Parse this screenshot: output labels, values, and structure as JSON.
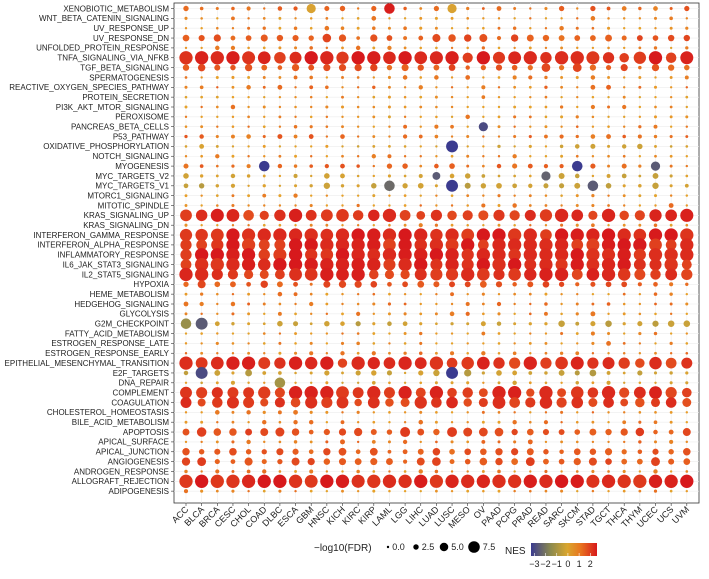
{
  "chart_data": {
    "type": "bubble-heatmap",
    "title": "",
    "xlabel": "",
    "ylabel": "",
    "cancers": [
      "ACC",
      "BLCA",
      "BRCA",
      "CESC",
      "CHOL",
      "COAD",
      "DLBC",
      "ESCA",
      "GBM",
      "HNSC",
      "KICH",
      "KIRC",
      "KIRP",
      "LAML",
      "LGG",
      "LIHC",
      "LUAD",
      "LUSC",
      "MESO",
      "OV",
      "PAAD",
      "PCPG",
      "PRAD",
      "READ",
      "SARC",
      "SKCM",
      "STAD",
      "TGCT",
      "THCA",
      "THYM",
      "UCEC",
      "UCS",
      "UVM"
    ],
    "pathways": [
      "XENOBIOTIC_METABOLISM",
      "WNT_BETA_CATENIN_SIGNALING",
      "UV_RESPONSE_UP",
      "UV_RESPONSE_DN",
      "UNFOLDED_PROTEIN_RESPONSE",
      "TNFA_SIGNALING_VIA_NFKB",
      "TGF_BETA_SIGNALING",
      "SPERMATOGENESIS",
      "REACTIVE_OXYGEN_SPECIES_PATHWAY",
      "PROTEIN_SECRETION",
      "PI3K_AKT_MTOR_SIGNALING",
      "PEROXISOME",
      "PANCREAS_BETA_CELLS",
      "P53_PATHWAY",
      "OXIDATIVE_PHOSPHORYLATION",
      "NOTCH_SIGNALING",
      "MYOGENESIS",
      "MYC_TARGETS_V2",
      "MYC_TARGETS_V1",
      "MTORC1_SIGNALING",
      "MITOTIC_SPINDLE",
      "KRAS_SIGNALING_UP",
      "KRAS_SIGNALING_DN",
      "INTERFERON_GAMMA_RESPONSE",
      "INTERFERON_ALPHA_RESPONSE",
      "INFLAMMATORY_RESPONSE",
      "IL6_JAK_STAT3_SIGNALING",
      "IL2_STAT5_SIGNALING",
      "HYPOXIA",
      "HEME_METABOLISM",
      "HEDGEHOG_SIGNALING",
      "GLYCOLYSIS",
      "G2M_CHECKPOINT",
      "FATTY_ACID_METABOLISM",
      "ESTROGEN_RESPONSE_LATE",
      "ESTROGEN_RESPONSE_EARLY",
      "EPITHELIAL_MESENCHYMAL_TRANSITION",
      "E2F_TARGETS",
      "DNA_REPAIR",
      "COMPLEMENT",
      "COAGULATION",
      "CHOLESTEROL_HOMEOSTASIS",
      "BILE_ACID_METABOLISM",
      "APOPTOSIS",
      "APICAL_SURFACE",
      "APICAL_JUNCTION",
      "ANGIOGENESIS",
      "ANDROGEN_RESPONSE",
      "ALLOGRAFT_REJECTION",
      "ADIPOGENESIS"
    ],
    "size_legend": {
      "title": "−log10(FDR)",
      "values": [
        0.0,
        2.5,
        5.0,
        7.5
      ],
      "labels": [
        "0.0",
        "2.5",
        "5.0",
        "7.5"
      ]
    },
    "color_legend": {
      "title": "NES",
      "range": [
        -3,
        2
      ],
      "ticks": [
        -3,
        -2,
        -1,
        0,
        1,
        2
      ],
      "tick_labels": [
        "−3",
        "−2",
        "−1",
        "0",
        "1",
        "2"
      ],
      "colors": [
        "#3b3b8f",
        "#8c8a4e",
        "#c9a23a",
        "#e8a22a",
        "#e8631f",
        "#d7191c"
      ]
    },
    "row_profiles": {
      "XENOBIOTIC_METABOLISM": [
        0.9,
        0.6
      ],
      "WNT_BETA_CATENIN_SIGNALING": [
        0.3,
        0.4
      ],
      "UV_RESPONSE_UP": [
        0.3,
        0.5
      ],
      "UV_RESPONSE_DN": [
        1.2,
        1.0
      ],
      "UNFOLDED_PROTEIN_RESPONSE": [
        0.3,
        0.3
      ],
      "TNFA_SIGNALING_VIA_NFKB": [
        2.2,
        1.6
      ],
      "TGF_BETA_SIGNALING": [
        1.2,
        1.0
      ],
      "SPERMATOGENESIS": [
        0.4,
        0.5
      ],
      "REACTIVE_OXYGEN_SPECIES_PATHWAY": [
        0.6,
        0.4
      ],
      "PROTEIN_SECRETION": [
        0.2,
        0.3
      ],
      "PI3K_AKT_MTOR_SIGNALING": [
        0.3,
        0.4
      ],
      "PEROXISOME": [
        0.2,
        0.3
      ],
      "PANCREAS_BETA_CELLS": [
        0.4,
        0.3
      ],
      "P53_PATHWAY": [
        0.9,
        0.5
      ],
      "OXIDATIVE_PHOSPHORYLATION": [
        -0.4,
        0.6
      ],
      "NOTCH_SIGNALING": [
        0.3,
        0.3
      ],
      "MYOGENESIS": [
        0.9,
        0.6
      ],
      "MYC_TARGETS_V2": [
        -0.6,
        0.8
      ],
      "MYC_TARGETS_V1": [
        -0.8,
        0.9
      ],
      "MTORC1_SIGNALING": [
        0.2,
        0.4
      ],
      "MITOTIC_SPINDLE": [
        0.4,
        0.4
      ],
      "KRAS_SIGNALING_UP": [
        2.0,
        1.5
      ],
      "KRAS_SIGNALING_DN": [
        0.3,
        0.4
      ],
      "INTERFERON_GAMMA_RESPONSE": [
        2.3,
        1.8
      ],
      "INTERFERON_ALPHA_RESPONSE": [
        2.2,
        1.8
      ],
      "INFLAMMATORY_RESPONSE": [
        2.3,
        1.8
      ],
      "IL6_JAK_STAT3_SIGNALING": [
        2.2,
        1.7
      ],
      "IL2_STAT5_SIGNALING": [
        2.0,
        1.6
      ],
      "HYPOXIA": [
        1.2,
        0.9
      ],
      "HEME_METABOLISM": [
        0.4,
        0.4
      ],
      "HEDGEHOG_SIGNALING": [
        0.6,
        0.5
      ],
      "GLYCOLYSIS": [
        0.4,
        0.5
      ],
      "G2M_CHECKPOINT": [
        -0.8,
        0.9
      ],
      "FATTY_ACID_METABOLISM": [
        0.3,
        0.4
      ],
      "ESTROGEN_RESPONSE_LATE": [
        0.3,
        0.4
      ],
      "ESTROGEN_RESPONSE_EARLY": [
        0.5,
        0.4
      ],
      "EPITHELIAL_MESENCHYMAL_TRANSITION": [
        2.0,
        1.6
      ],
      "E2F_TARGETS": [
        -0.9,
        0.9
      ],
      "DNA_REPAIR": [
        -0.3,
        0.4
      ],
      "COMPLEMENT": [
        2.0,
        1.6
      ],
      "COAGULATION": [
        1.8,
        1.4
      ],
      "CHOLESTEROL_HOMEOSTASIS": [
        0.5,
        0.5
      ],
      "BILE_ACID_METABOLISM": [
        0.4,
        0.4
      ],
      "APOPTOSIS": [
        1.4,
        1.1
      ],
      "APICAL_SURFACE": [
        0.6,
        0.5
      ],
      "APICAL_JUNCTION": [
        1.2,
        1.0
      ],
      "ANGIOGENESIS": [
        1.4,
        1.1
      ],
      "ANDROGEN_RESPONSE": [
        0.4,
        0.4
      ],
      "ALLOGRAFT_REJECTION": [
        2.4,
        1.9
      ],
      "ADIPOGENESIS": [
        0.3,
        0.4
      ]
    },
    "highlights": [
      {
        "pathway": "XENOBIOTIC_METABOLISM",
        "cancer": "LAML",
        "nes": 2.5,
        "sig": 6
      },
      {
        "pathway": "XENOBIOTIC_METABOLISM",
        "cancer": "GBM",
        "nes": -0.5,
        "sig": 5
      },
      {
        "pathway": "XENOBIOTIC_METABOLISM",
        "cancer": "LUSC",
        "nes": -0.5,
        "sig": 5
      },
      {
        "pathway": "MYOGENESIS",
        "cancer": "COAD",
        "nes": -3.0,
        "sig": 6
      },
      {
        "pathway": "MYOGENESIS",
        "cancer": "SKCM",
        "nes": -3.0,
        "sig": 6
      },
      {
        "pathway": "MYOGENESIS",
        "cancer": "UCEC",
        "nes": -2.6,
        "sig": 5
      },
      {
        "pathway": "MYC_TARGETS_V2",
        "cancer": "LUAD",
        "nes": -2.6,
        "sig": 4
      },
      {
        "pathway": "MYC_TARGETS_V2",
        "cancer": "READ",
        "nes": -2.5,
        "sig": 5
      },
      {
        "pathway": "MYC_TARGETS_V1",
        "cancer": "LUSC",
        "nes": -3.0,
        "sig": 7
      },
      {
        "pathway": "MYC_TARGETS_V1",
        "cancer": "LAML",
        "nes": -2.4,
        "sig": 6
      },
      {
        "pathway": "MYC_TARGETS_V1",
        "cancer": "STAD",
        "nes": -2.6,
        "sig": 6
      },
      {
        "pathway": "OXIDATIVE_PHOSPHORYLATION",
        "cancer": "LUSC",
        "nes": -3.0,
        "sig": 7
      },
      {
        "pathway": "PANCREAS_BETA_CELLS",
        "cancer": "OV",
        "nes": -2.8,
        "sig": 5
      },
      {
        "pathway": "DNA_REPAIR",
        "cancer": "DLBC",
        "nes": -1.6,
        "sig": 6
      },
      {
        "pathway": "E2F_TARGETS",
        "cancer": "BLCA",
        "nes": -2.8,
        "sig": 7
      },
      {
        "pathway": "E2F_TARGETS",
        "cancer": "LUSC",
        "nes": -3.0,
        "sig": 7
      },
      {
        "pathway": "G2M_CHECKPOINT",
        "cancer": "BLCA",
        "nes": -2.6,
        "sig": 7
      },
      {
        "pathway": "G2M_CHECKPOINT",
        "cancer": "ACC",
        "nes": -1.8,
        "sig": 6
      }
    ]
  }
}
